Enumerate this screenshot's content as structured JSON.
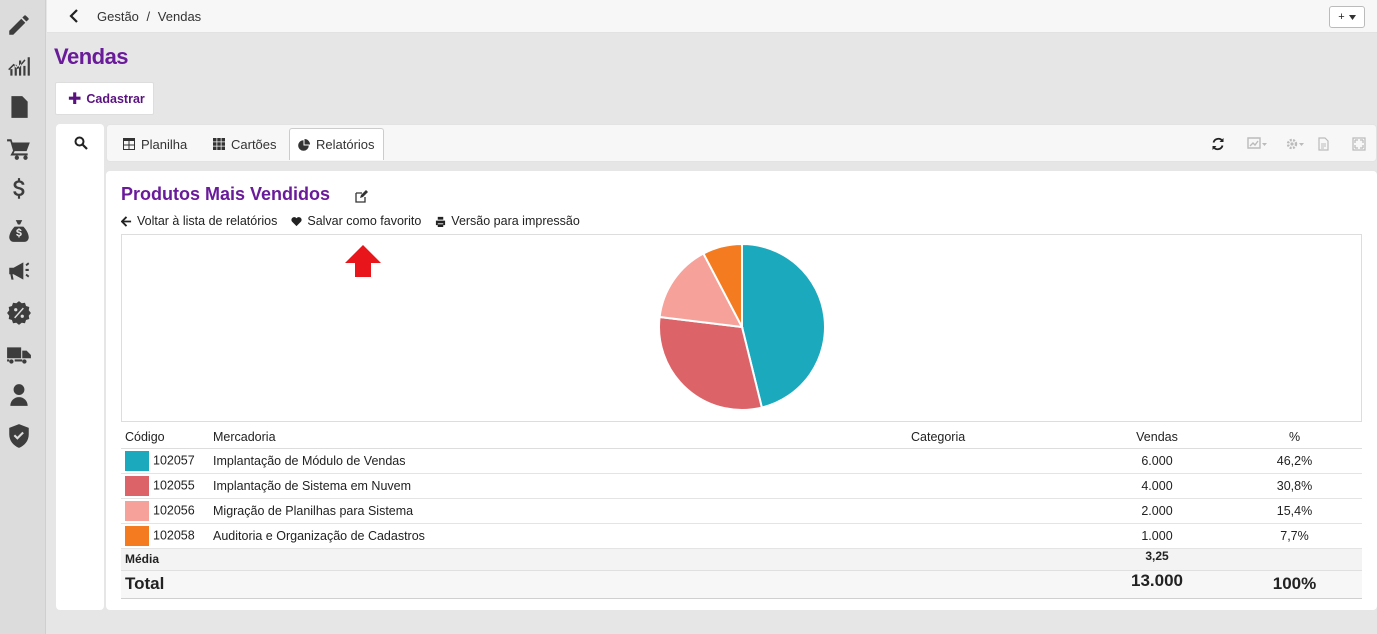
{
  "breadcrumb": {
    "section": "Gestão",
    "separator": "/",
    "current": "Vendas"
  },
  "topbar": {
    "add_label": "+"
  },
  "page": {
    "title": "Vendas"
  },
  "actions": {
    "cadastrar": "Cadastrar"
  },
  "tabs": [
    {
      "label": "Planilha",
      "icon": "table-icon"
    },
    {
      "label": "Cartões",
      "icon": "grid-icon"
    },
    {
      "label": "Relatórios",
      "icon": "pie-chart-icon",
      "active": true
    }
  ],
  "report": {
    "title": "Produtos Mais Vendidos",
    "links": {
      "back": "Voltar à lista de relatórios",
      "favorite": "Salvar como favorito",
      "print": "Versão para impressão"
    }
  },
  "table": {
    "headers": {
      "codigo": "Código",
      "mercadoria": "Mercadoria",
      "categoria": "Categoria",
      "vendas": "Vendas",
      "percent": "%"
    },
    "rows": [
      {
        "codigo": "102057",
        "mercadoria": "Implantação de Módulo de Vendas",
        "categoria": "",
        "vendas": "6.000",
        "percent": "46,2%",
        "color": "#1ba9bd"
      },
      {
        "codigo": "102055",
        "mercadoria": "Implantação de Sistema em Nuvem",
        "categoria": "",
        "vendas": "4.000",
        "percent": "30,8%",
        "color": "#dc6469"
      },
      {
        "codigo": "102056",
        "mercadoria": "Migração de Planilhas para Sistema",
        "categoria": "",
        "vendas": "2.000",
        "percent": "15,4%",
        "color": "#f6a199"
      },
      {
        "codigo": "102058",
        "mercadoria": "Auditoria e Organização de Cadastros",
        "categoria": "",
        "vendas": "1.000",
        "percent": "7,7%",
        "color": "#f47b20"
      }
    ],
    "media": {
      "label": "Média",
      "value": "3,25"
    },
    "total": {
      "label": "Total",
      "vendas": "13.000",
      "percent": "100%"
    }
  },
  "chart_data": {
    "type": "pie",
    "categories": [
      "102057",
      "102055",
      "102056",
      "102058"
    ],
    "values": [
      6000,
      4000,
      2000,
      1000
    ],
    "colors": [
      "#1ba9bd",
      "#dc6469",
      "#f6a199",
      "#f47b20"
    ]
  },
  "colors": {
    "brand": "#6a1b9a",
    "annotation_arrow": "#e8151b"
  }
}
